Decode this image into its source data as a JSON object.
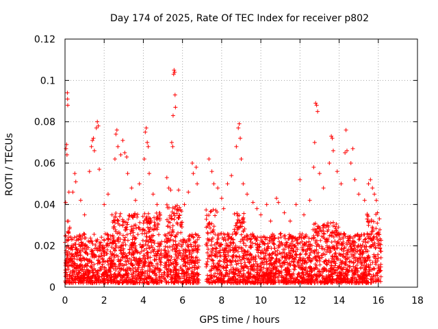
{
  "chart_data": {
    "type": "scatter",
    "title": "Day 174 of 2025, Rate Of TEC Index for receiver p802",
    "xlabel": "GPS time / hours",
    "ylabel": "ROTI / TECUs",
    "xlim": [
      0,
      18
    ],
    "ylim": [
      0,
      0.12
    ],
    "xticks": [
      0,
      2,
      4,
      6,
      8,
      10,
      12,
      14,
      16,
      18
    ],
    "xtick_labels": [
      "0",
      "2",
      "4",
      "6",
      "8",
      "10",
      "12",
      "14",
      "16",
      "18"
    ],
    "yticks": [
      0,
      0.02,
      0.04,
      0.06,
      0.08,
      0.1,
      0.12
    ],
    "ytick_labels": [
      "0",
      "0.02",
      "0.04",
      "0.06",
      "0.08",
      "0.1",
      "0.12"
    ],
    "grid": true,
    "marker": "plus",
    "color": "#ff0000",
    "data_gaps_hours": [
      [
        4.95,
        5.05
      ],
      [
        6.85,
        7.2
      ],
      [
        16.15,
        18
      ]
    ],
    "series": [
      {
        "name": "ROTI",
        "points": [
          [
            0.05,
            0.067
          ],
          [
            0.08,
            0.069
          ],
          [
            0.1,
            0.064
          ],
          [
            0.12,
            0.094
          ],
          [
            0.13,
            0.091
          ],
          [
            0.14,
            0.088
          ],
          [
            0.03,
            0.041
          ],
          [
            0.2,
            0.046
          ],
          [
            0.4,
            0.046
          ],
          [
            0.5,
            0.055
          ],
          [
            0.55,
            0.051
          ],
          [
            0.8,
            0.042
          ],
          [
            1.0,
            0.035
          ],
          [
            1.25,
            0.056
          ],
          [
            1.35,
            0.068
          ],
          [
            1.4,
            0.071
          ],
          [
            1.45,
            0.072
          ],
          [
            1.5,
            0.066
          ],
          [
            1.6,
            0.077
          ],
          [
            1.65,
            0.08
          ],
          [
            1.7,
            0.078
          ],
          [
            1.75,
            0.057
          ],
          [
            2.0,
            0.04
          ],
          [
            2.2,
            0.045
          ],
          [
            2.4,
            0.035
          ],
          [
            2.55,
            0.062
          ],
          [
            2.6,
            0.074
          ],
          [
            2.65,
            0.076
          ],
          [
            2.7,
            0.068
          ],
          [
            2.85,
            0.064
          ],
          [
            2.95,
            0.071
          ],
          [
            3.05,
            0.065
          ],
          [
            3.15,
            0.063
          ],
          [
            3.2,
            0.055
          ],
          [
            3.4,
            0.048
          ],
          [
            3.6,
            0.042
          ],
          [
            3.8,
            0.05
          ],
          [
            4.05,
            0.062
          ],
          [
            4.1,
            0.075
          ],
          [
            4.15,
            0.077
          ],
          [
            4.2,
            0.07
          ],
          [
            4.25,
            0.068
          ],
          [
            4.3,
            0.055
          ],
          [
            4.5,
            0.045
          ],
          [
            4.7,
            0.04
          ],
          [
            4.85,
            0.035
          ],
          [
            5.2,
            0.053
          ],
          [
            5.3,
            0.048
          ],
          [
            5.4,
            0.047
          ],
          [
            5.45,
            0.07
          ],
          [
            5.5,
            0.068
          ],
          [
            5.55,
            0.103
          ],
          [
            5.57,
            0.105
          ],
          [
            5.6,
            0.104
          ],
          [
            5.62,
            0.093
          ],
          [
            5.64,
            0.087
          ],
          [
            5.52,
            0.083
          ],
          [
            5.8,
            0.047
          ],
          [
            6.1,
            0.04
          ],
          [
            6.3,
            0.046
          ],
          [
            6.5,
            0.06
          ],
          [
            6.55,
            0.055
          ],
          [
            6.7,
            0.058
          ],
          [
            6.75,
            0.05
          ],
          [
            7.35,
            0.062
          ],
          [
            7.5,
            0.056
          ],
          [
            7.6,
            0.05
          ],
          [
            7.8,
            0.048
          ],
          [
            8.0,
            0.043
          ],
          [
            8.1,
            0.038
          ],
          [
            8.3,
            0.05
          ],
          [
            8.5,
            0.054
          ],
          [
            8.75,
            0.068
          ],
          [
            8.85,
            0.077
          ],
          [
            8.9,
            0.079
          ],
          [
            8.95,
            0.072
          ],
          [
            9.0,
            0.062
          ],
          [
            9.1,
            0.05
          ],
          [
            9.3,
            0.045
          ],
          [
            9.6,
            0.041
          ],
          [
            9.8,
            0.038
          ],
          [
            10.0,
            0.035
          ],
          [
            10.3,
            0.04
          ],
          [
            10.5,
            0.032
          ],
          [
            10.8,
            0.043
          ],
          [
            10.9,
            0.041
          ],
          [
            11.2,
            0.036
          ],
          [
            11.5,
            0.032
          ],
          [
            11.8,
            0.04
          ],
          [
            12.0,
            0.052
          ],
          [
            12.2,
            0.035
          ],
          [
            12.5,
            0.042
          ],
          [
            12.7,
            0.058
          ],
          [
            12.75,
            0.07
          ],
          [
            12.8,
            0.089
          ],
          [
            12.85,
            0.088
          ],
          [
            12.9,
            0.085
          ],
          [
            13.0,
            0.055
          ],
          [
            13.2,
            0.048
          ],
          [
            13.5,
            0.06
          ],
          [
            13.6,
            0.073
          ],
          [
            13.65,
            0.072
          ],
          [
            13.7,
            0.066
          ],
          [
            13.9,
            0.056
          ],
          [
            14.1,
            0.05
          ],
          [
            14.3,
            0.065
          ],
          [
            14.35,
            0.076
          ],
          [
            14.4,
            0.066
          ],
          [
            14.6,
            0.06
          ],
          [
            14.7,
            0.067
          ],
          [
            14.8,
            0.052
          ],
          [
            15.0,
            0.045
          ],
          [
            15.3,
            0.042
          ],
          [
            15.5,
            0.05
          ],
          [
            15.6,
            0.052
          ],
          [
            15.7,
            0.048
          ],
          [
            15.8,
            0.045
          ],
          [
            15.9,
            0.042
          ],
          [
            16.0,
            0.02
          ],
          [
            16.1,
            0.008
          ]
        ]
      }
    ]
  }
}
